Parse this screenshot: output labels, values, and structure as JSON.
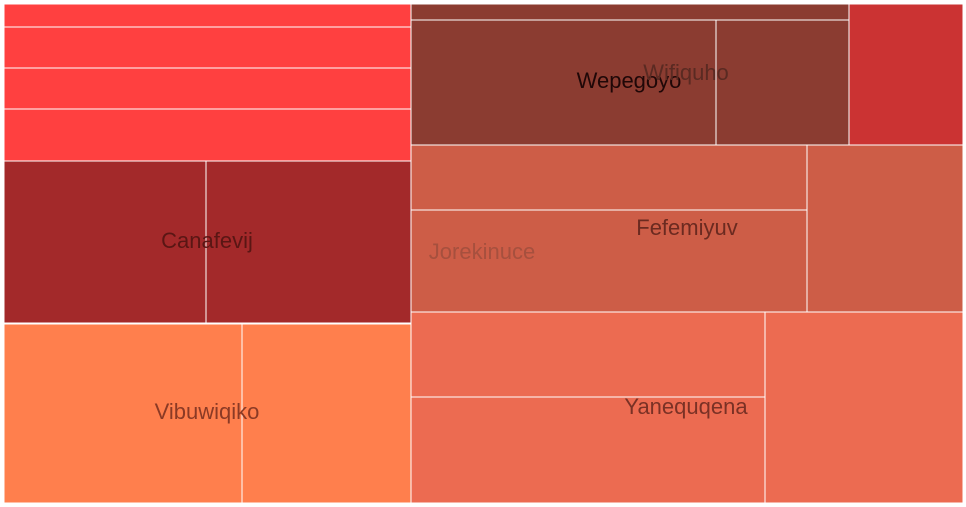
{
  "chart_data": {
    "type": "treemap",
    "title": "",
    "groups": [
      {
        "name": "",
        "color": "#ff4040",
        "label_color": "",
        "cells": [
          14,
          17,
          17,
          22
        ]
      },
      {
        "name": "Canafevij",
        "color": "#a3292a",
        "label_color": "#5a1614",
        "cells": [
          32,
          32
        ]
      },
      {
        "name": "Vibuwiqiko",
        "color": "#ff7f4d",
        "label_color": "#8b3a25",
        "cells": [
          43,
          28
        ]
      },
      {
        "name": "Wepegoyo",
        "color": "#8b3c31",
        "label_color": "#1f0707",
        "cells": [
          7
        ]
      },
      {
        "name": "Wifiquho",
        "color": "#8b3c31",
        "label_color": "#5a2a22",
        "cells": [
          37,
          17
        ]
      },
      {
        "name": "",
        "color": "#cb3333",
        "label_color": "",
        "cells": [
          16
        ]
      },
      {
        "name": "Jorekinuce",
        "color": "#cd5d47",
        "label_color": "#a6503e",
        "cells": [
          17,
          27,
          17
        ]
      },
      {
        "name": "Fefemiyuv",
        "color": "#cd5d47",
        "label_color": "#6b2a20",
        "cells": []
      },
      {
        "name": "Yanequqena",
        "color": "#ec6b51",
        "label_color": "#7a3125",
        "cells": [
          25,
          31,
          40
        ]
      }
    ]
  }
}
